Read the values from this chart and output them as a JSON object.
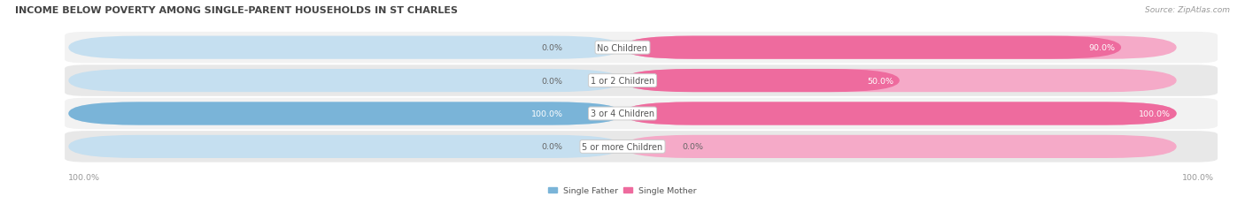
{
  "title": "INCOME BELOW POVERTY AMONG SINGLE-PARENT HOUSEHOLDS IN ST CHARLES",
  "source": "Source: ZipAtlas.com",
  "categories": [
    "No Children",
    "1 or 2 Children",
    "3 or 4 Children",
    "5 or more Children"
  ],
  "single_father": [
    0.0,
    0.0,
    100.0,
    0.0
  ],
  "single_mother": [
    90.0,
    50.0,
    100.0,
    0.0
  ],
  "father_color": "#7ab4d8",
  "mother_color": "#ee6b9e",
  "father_color_light": "#c5dff0",
  "mother_color_light": "#f5aac8",
  "row_bg_odd": "#f2f2f2",
  "row_bg_even": "#e8e8e8",
  "bar_height": 0.55,
  "figsize": [
    14.06,
    2.32
  ],
  "dpi": 100,
  "max_val": 100.0,
  "axis_label_left": "100.0%",
  "axis_label_right": "100.0%",
  "legend_labels": [
    "Single Father",
    "Single Mother"
  ],
  "title_fontsize": 8.0,
  "source_fontsize": 6.5,
  "label_fontsize": 7.0,
  "value_fontsize": 6.8
}
